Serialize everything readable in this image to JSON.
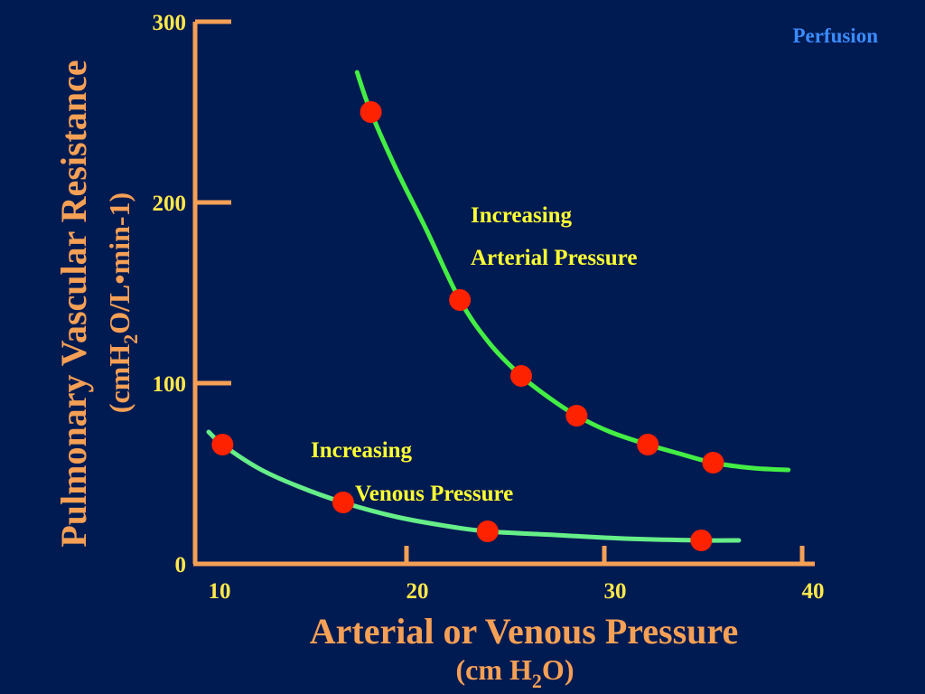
{
  "slide": {
    "corner_label": "Perfusion",
    "colors": {
      "background": "#001a52",
      "axis": "#f5a055",
      "tick_text": "#ffe84a",
      "annotation": "#ffff33",
      "point": "#ff2200",
      "arterial_curve": "#44ee44",
      "venous_curve": "#66ee88",
      "corner_label": "#3a8cff"
    }
  },
  "chart_data": {
    "type": "scatter",
    "title": "",
    "xlabel": "Arterial or Venous Pressure",
    "xlabel_unit": {
      "prefix": "(cm H",
      "sub": "2",
      "suffix": "O)"
    },
    "ylabel": "Pulmonary Vascular Resistance",
    "ylabel_unit": {
      "prefix": "(cmH",
      "sub": "2",
      "suffix": "O/L•min-1)"
    },
    "xlim": [
      10,
      40
    ],
    "ylim": [
      0,
      300
    ],
    "x_ticks": [
      10,
      20,
      30,
      40
    ],
    "x_tick_labels": [
      "10",
      "20",
      "30",
      "40"
    ],
    "y_ticks": [
      0,
      100,
      200,
      300
    ],
    "y_tick_labels": [
      "0",
      "100",
      "200",
      "300"
    ],
    "grid": false,
    "series": [
      {
        "key": "arterial",
        "points": [
          {
            "x": 18.2,
            "y": 250
          },
          {
            "x": 22.7,
            "y": 146
          },
          {
            "x": 25.8,
            "y": 104
          },
          {
            "x": 28.6,
            "y": 82
          },
          {
            "x": 32.2,
            "y": 66
          },
          {
            "x": 35.5,
            "y": 56
          }
        ],
        "curve": [
          [
            17.5,
            272
          ],
          [
            18.2,
            250
          ],
          [
            19.5,
            218
          ],
          [
            21.0,
            185
          ],
          [
            22.7,
            146
          ],
          [
            24.2,
            122
          ],
          [
            25.8,
            104
          ],
          [
            27.2,
            92
          ],
          [
            28.6,
            82
          ],
          [
            30.3,
            73
          ],
          [
            32.2,
            66
          ],
          [
            33.8,
            61
          ],
          [
            35.5,
            56
          ],
          [
            37.5,
            53
          ],
          [
            39.3,
            52
          ]
        ],
        "annotation": [
          "Increasing",
          "Arterial Pressure"
        ]
      },
      {
        "key": "venous",
        "points": [
          {
            "x": 10.7,
            "y": 66
          },
          {
            "x": 16.8,
            "y": 34
          },
          {
            "x": 24.1,
            "y": 18
          },
          {
            "x": 34.9,
            "y": 13
          }
        ],
        "curve": [
          [
            10.0,
            73
          ],
          [
            10.7,
            66
          ],
          [
            12.5,
            53
          ],
          [
            14.5,
            43
          ],
          [
            16.8,
            34
          ],
          [
            19.5,
            26
          ],
          [
            22.0,
            21
          ],
          [
            24.1,
            18
          ],
          [
            27.5,
            16
          ],
          [
            31.0,
            14
          ],
          [
            34.9,
            13
          ],
          [
            36.8,
            13
          ]
        ],
        "annotation": [
          "Increasing",
          "Venous Pressure"
        ]
      }
    ]
  }
}
